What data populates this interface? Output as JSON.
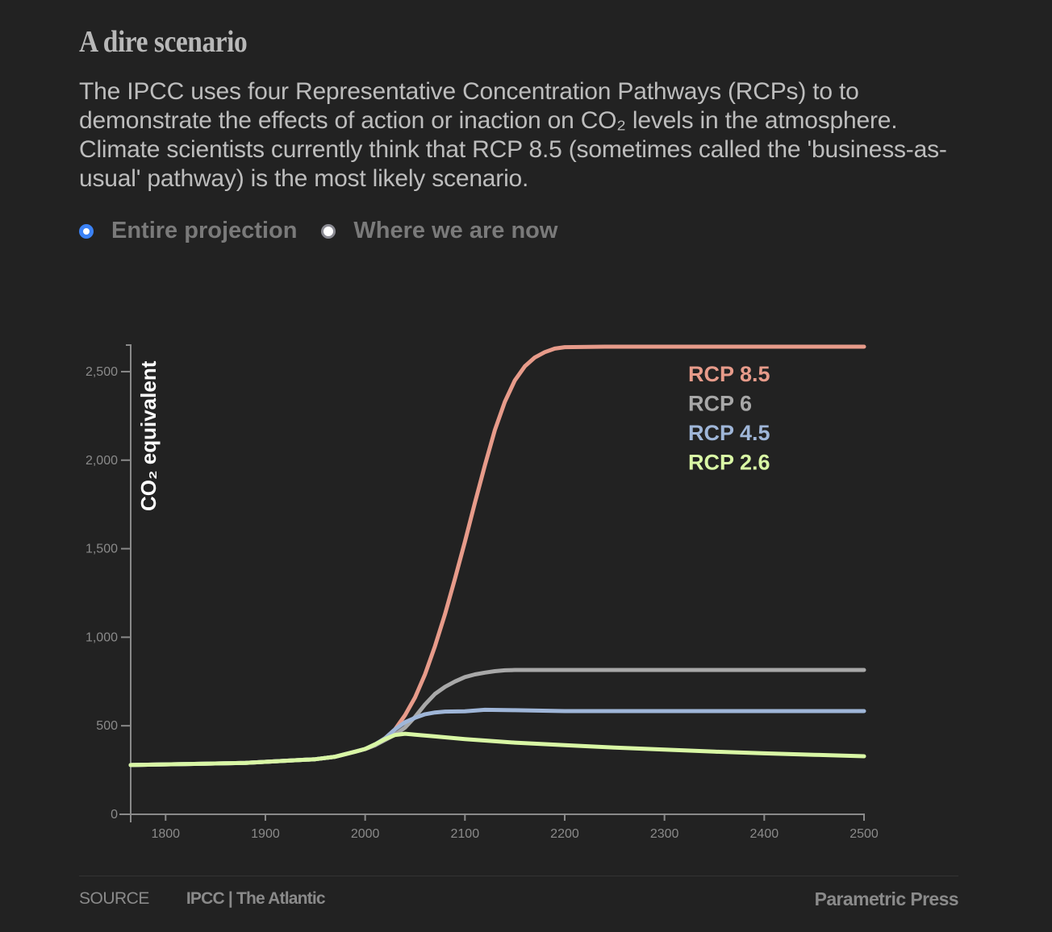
{
  "header": {
    "title": "A dire scenario",
    "description": "The IPCC uses four Representative Concentration Pathways (RCPs) to to demonstrate the effects of action or inaction on CO₂ levels in the atmosphere. Climate scientists currently think that RCP 8.5 (sometimes called the 'business-as-usual' pathway) is the most likely scenario."
  },
  "view_toggle": {
    "options": [
      {
        "label": "Entire projection",
        "selected": true
      },
      {
        "label": "Where we are now",
        "selected": false
      }
    ]
  },
  "footer": {
    "source_label": "SOURCE",
    "source_value": "IPCC | The Atlantic",
    "brand": "Parametric Press"
  },
  "chart_data": {
    "type": "line",
    "title": "",
    "xlabel": "",
    "ylabel": "CO₂ equivalent",
    "xlim": [
      1765,
      2500
    ],
    "ylim": [
      0,
      2650
    ],
    "xticks": [
      1800,
      1900,
      2000,
      2100,
      2200,
      2300,
      2400,
      2500
    ],
    "xtick_labels": [
      "1800",
      "1900",
      "2000",
      "2100",
      "2200",
      "2300",
      "2400",
      "2500"
    ],
    "yticks": [
      0,
      500,
      1000,
      1500,
      2000,
      2500
    ],
    "ytick_labels": [
      "0",
      "500",
      "1,000",
      "1,500",
      "2,000",
      "2,500"
    ],
    "grid": false,
    "legend_position": "top-right",
    "series": [
      {
        "name": "RCP 8.5",
        "color": "#e79b8a",
        "points": [
          [
            1765,
            278
          ],
          [
            1880,
            290
          ],
          [
            1950,
            311
          ],
          [
            1970,
            325
          ],
          [
            1990,
            354
          ],
          [
            2000,
            369
          ],
          [
            2010,
            390
          ],
          [
            2020,
            430
          ],
          [
            2030,
            480
          ],
          [
            2040,
            560
          ],
          [
            2050,
            660
          ],
          [
            2060,
            790
          ],
          [
            2070,
            950
          ],
          [
            2080,
            1130
          ],
          [
            2090,
            1330
          ],
          [
            2100,
            1540
          ],
          [
            2110,
            1760
          ],
          [
            2120,
            1970
          ],
          [
            2130,
            2170
          ],
          [
            2140,
            2330
          ],
          [
            2150,
            2450
          ],
          [
            2160,
            2530
          ],
          [
            2170,
            2580
          ],
          [
            2180,
            2610
          ],
          [
            2190,
            2630
          ],
          [
            2200,
            2638
          ],
          [
            2240,
            2641
          ],
          [
            2500,
            2641
          ]
        ]
      },
      {
        "name": "RCP 6",
        "color": "#a8a8a8",
        "points": [
          [
            1765,
            278
          ],
          [
            1880,
            290
          ],
          [
            1950,
            311
          ],
          [
            1970,
            325
          ],
          [
            1990,
            354
          ],
          [
            2000,
            369
          ],
          [
            2010,
            390
          ],
          [
            2020,
            420
          ],
          [
            2030,
            450
          ],
          [
            2040,
            490
          ],
          [
            2050,
            550
          ],
          [
            2060,
            620
          ],
          [
            2070,
            680
          ],
          [
            2080,
            720
          ],
          [
            2090,
            750
          ],
          [
            2100,
            775
          ],
          [
            2110,
            790
          ],
          [
            2120,
            800
          ],
          [
            2130,
            808
          ],
          [
            2140,
            813
          ],
          [
            2150,
            815
          ],
          [
            2500,
            815
          ]
        ]
      },
      {
        "name": "RCP 4.5",
        "color": "#9fb6d8",
        "points": [
          [
            1765,
            278
          ],
          [
            1880,
            290
          ],
          [
            1950,
            311
          ],
          [
            1970,
            325
          ],
          [
            1990,
            354
          ],
          [
            2000,
            369
          ],
          [
            2010,
            395
          ],
          [
            2020,
            430
          ],
          [
            2030,
            480
          ],
          [
            2040,
            520
          ],
          [
            2050,
            545
          ],
          [
            2060,
            565
          ],
          [
            2070,
            575
          ],
          [
            2080,
            580
          ],
          [
            2100,
            582
          ],
          [
            2120,
            590
          ],
          [
            2150,
            588
          ],
          [
            2200,
            583
          ],
          [
            2500,
            583
          ]
        ]
      },
      {
        "name": "RCP 2.6",
        "color": "#d9f7a5",
        "points": [
          [
            1765,
            278
          ],
          [
            1880,
            290
          ],
          [
            1950,
            311
          ],
          [
            1970,
            325
          ],
          [
            1990,
            354
          ],
          [
            2000,
            369
          ],
          [
            2010,
            395
          ],
          [
            2020,
            425
          ],
          [
            2030,
            448
          ],
          [
            2040,
            455
          ],
          [
            2050,
            450
          ],
          [
            2070,
            440
          ],
          [
            2100,
            425
          ],
          [
            2150,
            405
          ],
          [
            2200,
            390
          ],
          [
            2250,
            377
          ],
          [
            2300,
            365
          ],
          [
            2350,
            354
          ],
          [
            2400,
            344
          ],
          [
            2450,
            336
          ],
          [
            2500,
            328
          ]
        ]
      }
    ]
  }
}
